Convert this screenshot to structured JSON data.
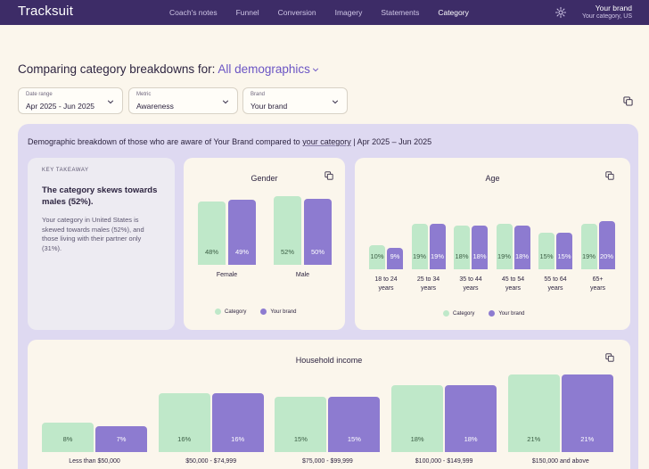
{
  "app": {
    "logo": "Tracksuit",
    "nav": [
      "Coach's notes",
      "Funnel",
      "Conversion",
      "Imagery",
      "Statements",
      "Category"
    ],
    "active_nav": "Category",
    "brand_name": "Your brand",
    "brand_sub": "Your category, US"
  },
  "heading": {
    "prefix": "Comparing category breakdowns for:",
    "selection": "All demographics"
  },
  "filters": [
    {
      "label": "Date range",
      "value": "Apr 2025 - Jun 2025"
    },
    {
      "label": "Metric",
      "value": "Awareness"
    },
    {
      "label": "Brand",
      "value": "Your brand"
    }
  ],
  "panel": {
    "title_pre": "Demographic breakdown of those who are aware of Your Brand compared to ",
    "title_link": "your category",
    "title_post": " | Apr 2025 – Jun 2025"
  },
  "key_takeaway": {
    "label": "KEY TAKEAWAY",
    "headline": "The category skews towards males (52%).",
    "body": "Your category in United States is skewed towards males (52%), and those living with their partner only (31%)."
  },
  "legend": {
    "category": "Category",
    "brand": "Your brand"
  },
  "colors": {
    "category": "#bfe8c9",
    "brand": "#8d7bd0",
    "header": "#3d2c67"
  },
  "chart_data": [
    {
      "type": "bar",
      "title": "Gender",
      "categories": [
        "Female",
        "Male"
      ],
      "series": [
        {
          "name": "Category",
          "values": [
            48,
            52
          ]
        },
        {
          "name": "Your brand",
          "values": [
            49,
            50
          ]
        }
      ],
      "labels": [
        [
          "48%",
          "49%"
        ],
        [
          "52%",
          "50%"
        ]
      ]
    },
    {
      "type": "bar",
      "title": "Age",
      "categories": [
        [
          "18 to 24",
          "years"
        ],
        [
          "25 to 34",
          "years"
        ],
        [
          "35 to 44",
          "years"
        ],
        [
          "45 to 54",
          "years"
        ],
        [
          "55 to 64",
          "years"
        ],
        [
          "65+",
          "years"
        ]
      ],
      "series": [
        {
          "name": "Category",
          "values": [
            10,
            19,
            18,
            19,
            15,
            19
          ]
        },
        {
          "name": "Your brand",
          "values": [
            9,
            19,
            18,
            18,
            15,
            20
          ]
        }
      ],
      "labels": [
        [
          "10%",
          "9%"
        ],
        [
          "19%",
          "19%"
        ],
        [
          "18%",
          "18%"
        ],
        [
          "19%",
          "18%"
        ],
        [
          "15%",
          "15%"
        ],
        [
          "19%",
          "20%"
        ]
      ]
    },
    {
      "type": "bar",
      "title": "Household income",
      "categories": [
        "Less than $50,000",
        "$50,000 - $74,999",
        "$75,000 - $99,999",
        "$100,000 - $149,999",
        "$150,000 and above"
      ],
      "series": [
        {
          "name": "Category",
          "values": [
            8,
            16,
            15,
            18,
            21
          ]
        },
        {
          "name": "Your brand",
          "values": [
            7,
            16,
            15,
            18,
            21
          ]
        }
      ],
      "labels": [
        [
          "8%",
          "7%"
        ],
        [
          "16%",
          "16%"
        ],
        [
          "15%",
          "15%"
        ],
        [
          "18%",
          "18%"
        ],
        [
          "21%",
          "21%"
        ]
      ]
    }
  ]
}
